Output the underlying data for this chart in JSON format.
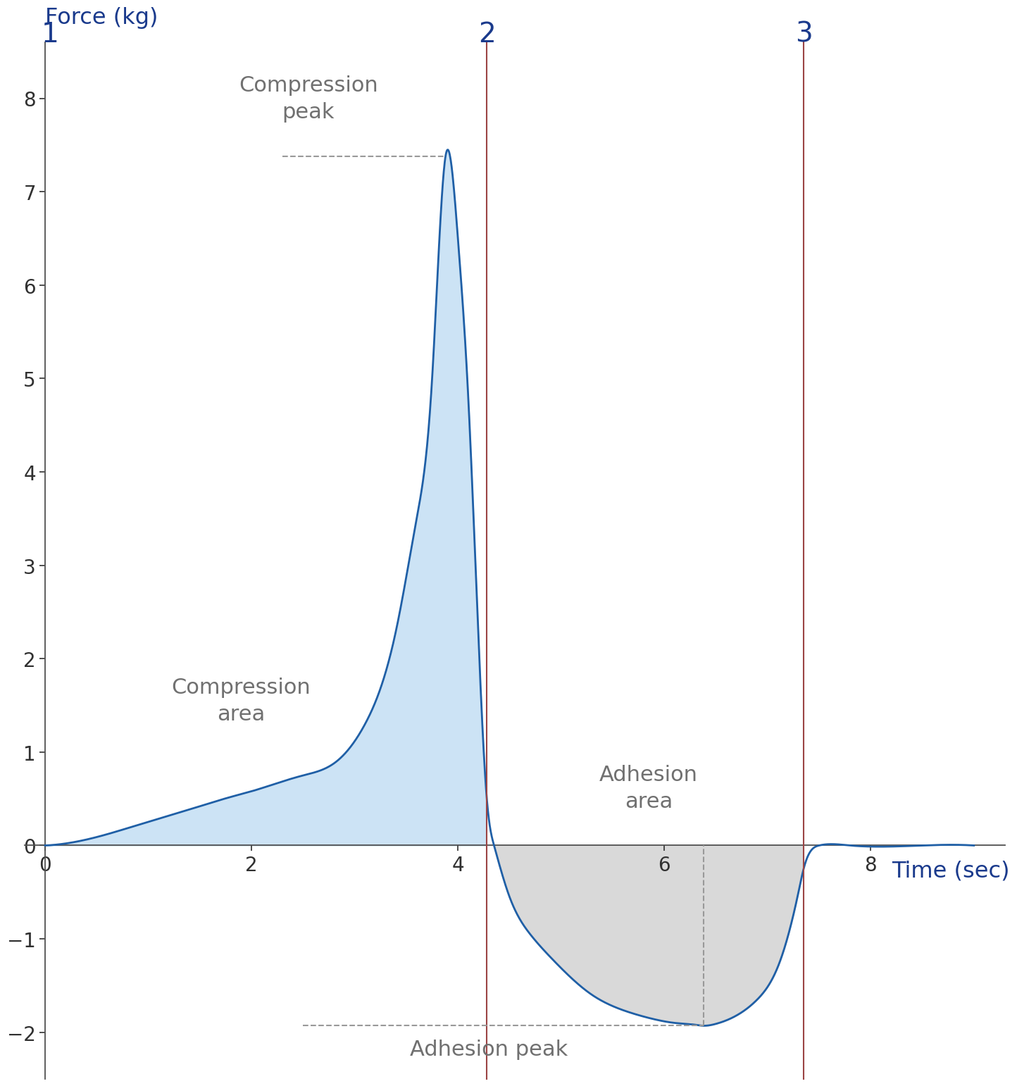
{
  "xlabel": "Time (sec)",
  "ylabel": "Force (kg)",
  "xlabel_color": "#1a3a8c",
  "ylabel_color": "#1a3a8c",
  "axis_label_fontsize": 23,
  "tick_label_fontsize": 20,
  "xlim": [
    -0.2,
    9.3
  ],
  "ylim": [
    -2.5,
    8.6
  ],
  "xticks": [
    0,
    2,
    4,
    6,
    8
  ],
  "yticks": [
    -2,
    -1,
    0,
    1,
    2,
    3,
    4,
    5,
    6,
    7,
    8
  ],
  "line_color": "#1f5fa6",
  "compression_fill_color": "#cce3f5",
  "adhesion_fill_color": "#d9d9d9",
  "vline_2_color": "#9b4444",
  "vline_3_color": "#9b4444",
  "vline_2_x": 4.28,
  "vline_3_x": 7.35,
  "label_1": "1",
  "label_2": "2",
  "label_3": "3",
  "label_color_123": "#1a3a8c",
  "compression_peak_label": "Compression\npeak",
  "compression_area_label": "Compression\narea",
  "adhesion_peak_label": "Adhesion peak",
  "adhesion_area_label": "Adhesion\narea",
  "annotation_color": "#707070",
  "annotation_fontsize": 22,
  "compression_peak_x": 3.88,
  "compression_peak_y": 7.38,
  "adhesion_peak_x": 6.38,
  "adhesion_peak_y": -1.93,
  "dashed_line_color": "#999999",
  "curve_x": [
    0.0,
    0.3,
    0.6,
    0.9,
    1.2,
    1.5,
    1.8,
    2.0,
    2.2,
    2.5,
    2.8,
    3.1,
    3.4,
    3.6,
    3.75,
    3.88,
    4.0,
    4.1,
    4.2,
    4.28,
    4.35,
    4.5,
    4.7,
    4.9,
    5.1,
    5.3,
    5.5,
    5.7,
    5.9,
    6.1,
    6.3,
    6.38,
    6.5,
    6.7,
    6.9,
    7.1,
    7.3,
    7.35,
    7.5,
    7.8,
    8.5,
    9.0
  ],
  "curve_y": [
    0.0,
    0.04,
    0.12,
    0.22,
    0.32,
    0.42,
    0.52,
    0.58,
    0.65,
    0.75,
    0.88,
    1.3,
    2.3,
    3.5,
    5.0,
    7.38,
    6.5,
    4.8,
    2.2,
    0.5,
    0.0,
    -0.55,
    -0.95,
    -1.2,
    -1.42,
    -1.6,
    -1.72,
    -1.8,
    -1.86,
    -1.9,
    -1.92,
    -1.93,
    -1.91,
    -1.82,
    -1.65,
    -1.3,
    -0.5,
    -0.25,
    0.0,
    0.0,
    0.0,
    0.0
  ]
}
